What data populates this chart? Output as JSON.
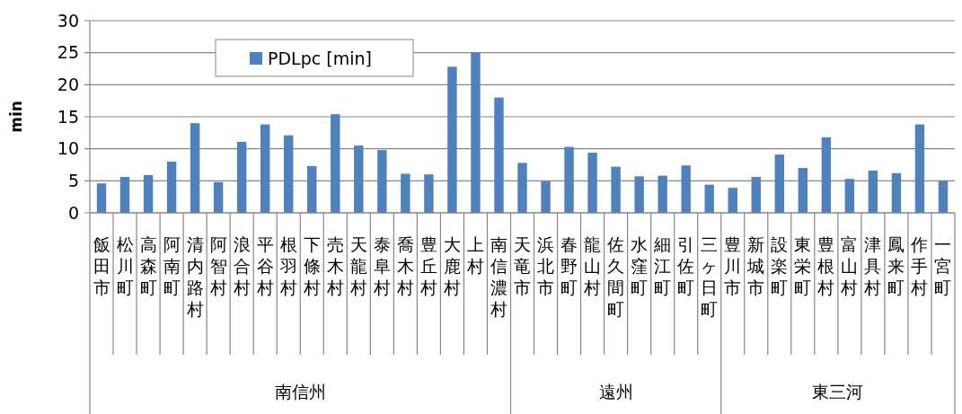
{
  "chart_data": {
    "type": "bar",
    "ylabel": "min",
    "categories": [
      "飯田市",
      "松川町",
      "高森町",
      "阿南町",
      "清内路村",
      "阿智村",
      "浪合村",
      "平谷村",
      "根羽村",
      "下條村",
      "売木村",
      "天龍村",
      "泰阜村",
      "喬木村",
      "豊丘村",
      "大鹿村",
      "上村",
      "南信濃村",
      "天竜市",
      "浜北市",
      "春野町",
      "龍山村",
      "佐久間町",
      "水窪町",
      "細江町",
      "引佐町",
      "三ヶ日町",
      "豊川市",
      "新城市",
      "設楽町",
      "東栄町",
      "豊根村",
      "富山村",
      "津具村",
      "鳳来町",
      "作手村",
      "一宮町"
    ],
    "series": [
      {
        "name": "PDLpc [min]",
        "color": "#4f81bd",
        "values": [
          4.6,
          5.6,
          5.9,
          8.0,
          14.0,
          4.8,
          11.1,
          13.8,
          12.1,
          7.3,
          15.4,
          10.5,
          9.8,
          6.1,
          6.0,
          22.8,
          25.0,
          18.0,
          null,
          null,
          null,
          null,
          null,
          null,
          null,
          null,
          null,
          null,
          null,
          null,
          null,
          null,
          null,
          null,
          null,
          null,
          null
        ]
      },
      {
        "color": "#4f81bd",
        "values": [
          null,
          null,
          null,
          null,
          null,
          null,
          null,
          null,
          null,
          null,
          null,
          null,
          null,
          null,
          null,
          null,
          null,
          null,
          7.8,
          4.9,
          10.3,
          9.4,
          7.2,
          5.7,
          5.8,
          7.4,
          4.4,
          null,
          null,
          null,
          null,
          null,
          null,
          null,
          null,
          null,
          null
        ]
      },
      {
        "color": "#4f81bd",
        "values": [
          null,
          null,
          null,
          null,
          null,
          null,
          null,
          null,
          null,
          null,
          null,
          null,
          null,
          null,
          null,
          null,
          null,
          null,
          null,
          null,
          null,
          null,
          null,
          null,
          null,
          null,
          null,
          3.9,
          5.6,
          9.1,
          7.0,
          11.8,
          5.3,
          6.6,
          6.2,
          13.8,
          5.0
        ]
      }
    ],
    "annotations": [
      "南信州",
      "遠州",
      "東三河"
    ],
    "ylim": [
      0,
      30
    ],
    "yticks": [
      0,
      5,
      10,
      15,
      20,
      25,
      30
    ],
    "grid": "y",
    "legend": "top"
  }
}
